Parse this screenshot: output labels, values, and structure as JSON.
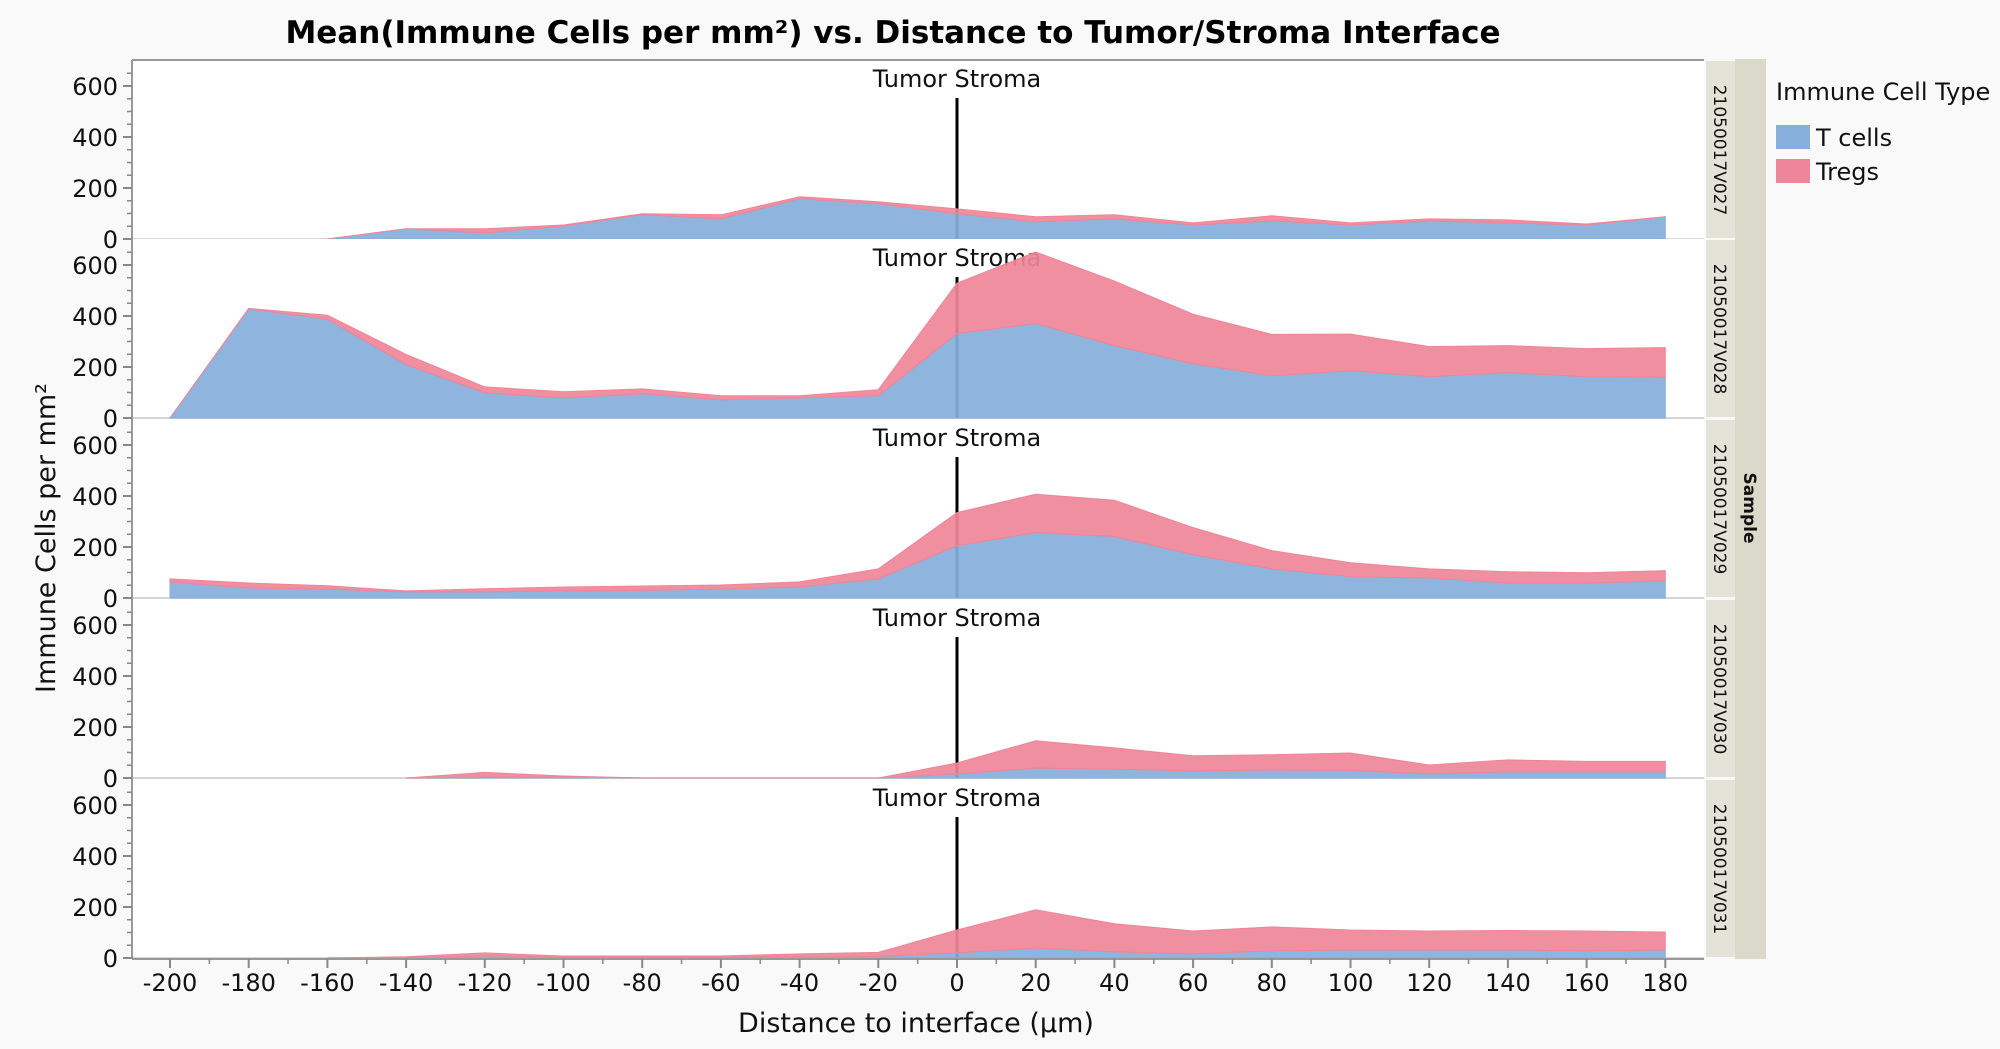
{
  "chart_data": {
    "type": "area",
    "stacked": true,
    "title": "Mean(Immune Cells per mm²) vs. Distance to Tumor/Stroma Interface",
    "xlabel": "Distance to interface (µm)",
    "ylabel": "Immune Cells per mm²",
    "x": [
      -200,
      -180,
      -160,
      -140,
      -120,
      -100,
      -80,
      -60,
      -40,
      -20,
      0,
      20,
      40,
      60,
      80,
      100,
      120,
      140,
      160,
      180
    ],
    "xticks": [
      -200,
      -180,
      -160,
      -140,
      -120,
      -100,
      -80,
      -60,
      -40,
      -20,
      0,
      20,
      40,
      60,
      80,
      100,
      120,
      140,
      160,
      180
    ],
    "xlim": [
      -208,
      210
    ],
    "yticks": [
      0,
      200,
      400,
      600
    ],
    "ylim": [
      0,
      700
    ],
    "grid": false,
    "reference_line": {
      "x": 0,
      "label": "Tumor Stroma"
    },
    "facet_title": "Sample",
    "legend": {
      "title": "Immune Cell Type",
      "position": "right",
      "entries": [
        {
          "name": "T cells",
          "color": "#86afdc"
        },
        {
          "name": "Tregs",
          "color": "#ef8598"
        }
      ]
    },
    "panels": [
      {
        "sample": "21050017V027",
        "series": [
          {
            "name": "T cells",
            "values": [
              null,
              null,
              0,
              40,
              24,
              51,
              95,
              79,
              158,
              138,
              99,
              67,
              79,
              55,
              71,
              55,
              71,
              63,
              55,
              87
            ]
          },
          {
            "name": "Tregs",
            "values": [
              null,
              null,
              0,
              0,
              16,
              4,
              4,
              16,
              8,
              8,
              19,
              20,
              16,
              8,
              20,
              8,
              8,
              12,
              4,
              0
            ]
          }
        ]
      },
      {
        "sample": "21050017V028",
        "series": [
          {
            "name": "T cells",
            "values": [
              0,
              428,
              387,
              209,
              99,
              79,
              95,
              71,
              79,
              87,
              331,
              371,
              284,
              213,
              166,
              186,
              162,
              178,
              162,
              160
            ]
          },
          {
            "name": "Tregs",
            "values": [
              0,
              2,
              16,
              40,
              23,
              24,
              19,
              16,
              8,
              24,
              198,
              280,
              253,
              194,
              162,
              143,
              118,
              106,
              110,
              116
            ]
          }
        ]
      },
      {
        "sample": "21050017V029",
        "series": [
          {
            "name": "T cells",
            "values": [
              63,
              39,
              35,
              24,
              24,
              28,
              30,
              35,
              43,
              75,
              205,
              257,
              241,
              170,
              114,
              83,
              79,
              59,
              59,
              67
            ]
          },
          {
            "name": "Tregs",
            "values": [
              12,
              20,
              13,
              4,
              12,
              15,
              17,
              16,
              20,
              39,
              130,
              150,
              142,
              106,
              72,
              55,
              35,
              44,
              40,
              40
            ]
          }
        ]
      },
      {
        "sample": "21050017V030",
        "series": [
          {
            "name": "T cells",
            "values": [
              null,
              null,
              null,
              0,
              3,
              4,
              0,
              0,
              0,
              0,
              16,
              39,
              35,
              28,
              31,
              30,
              16,
              24,
              24,
              24
            ]
          },
          {
            "name": "Tregs",
            "values": [
              null,
              null,
              null,
              0,
              19,
              4,
              0,
              0,
              0,
              0,
              43,
              107,
              83,
              59,
              60,
              68,
              35,
              47,
              41,
              41
            ]
          }
        ]
      },
      {
        "sample": "21050017V031",
        "series": [
          {
            "name": "T cells",
            "values": [
              null,
              null,
              0,
              2,
              8,
              4,
              4,
              4,
              6,
              6,
              20,
              39,
              24,
              16,
              28,
              31,
              31,
              31,
              28,
              31
            ]
          },
          {
            "name": "Tregs",
            "values": [
              null,
              null,
              0,
              3,
              12,
              4,
              4,
              4,
              10,
              16,
              90,
              150,
              110,
              90,
              94,
              79,
              75,
              77,
              78,
              71
            ]
          }
        ]
      }
    ]
  }
}
